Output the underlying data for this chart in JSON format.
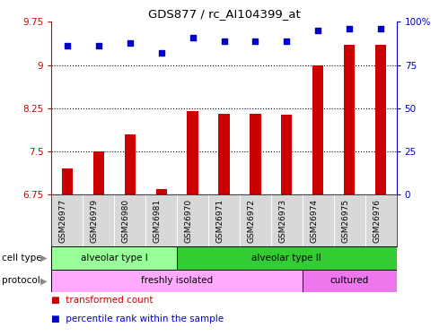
{
  "title": "GDS877 / rc_AI104399_at",
  "samples": [
    "GSM26977",
    "GSM26979",
    "GSM26980",
    "GSM26981",
    "GSM26970",
    "GSM26971",
    "GSM26972",
    "GSM26973",
    "GSM26974",
    "GSM26975",
    "GSM26976"
  ],
  "bar_values": [
    7.2,
    7.5,
    7.8,
    6.85,
    8.2,
    8.15,
    8.15,
    8.13,
    9.0,
    9.35,
    9.35
  ],
  "percentile_values": [
    86,
    86,
    88,
    82,
    91,
    89,
    89,
    89,
    95,
    96,
    96
  ],
  "ylim_left": [
    6.75,
    9.75
  ],
  "ylim_right": [
    0,
    100
  ],
  "yticks_left": [
    6.75,
    7.5,
    8.25,
    9.0,
    9.75
  ],
  "yticks_right": [
    0,
    25,
    50,
    75,
    100
  ],
  "ytick_labels_left": [
    "6.75",
    "7.5",
    "8.25",
    "9",
    "9.75"
  ],
  "ytick_labels_right": [
    "0",
    "25",
    "50",
    "75",
    "100%"
  ],
  "bar_color": "#cc0000",
  "dot_color": "#0000cc",
  "cell_type_groups": [
    {
      "label": "alveolar type I",
      "start": 0,
      "end": 4,
      "color": "#99ff99"
    },
    {
      "label": "alveolar type II",
      "start": 4,
      "end": 11,
      "color": "#33cc33"
    }
  ],
  "protocol_groups": [
    {
      "label": "freshly isolated",
      "start": 0,
      "end": 8,
      "color": "#ffaaff"
    },
    {
      "label": "cultured",
      "start": 8,
      "end": 11,
      "color": "#ee77ee"
    }
  ],
  "legend_items": [
    {
      "label": "transformed count",
      "color": "#cc0000"
    },
    {
      "label": "percentile rank within the sample",
      "color": "#0000cc"
    }
  ],
  "cell_type_label": "cell type",
  "protocol_label": "protocol",
  "bg_color": "#ffffff",
  "tick_color_left": "#cc0000",
  "tick_color_right": "#0000cc"
}
